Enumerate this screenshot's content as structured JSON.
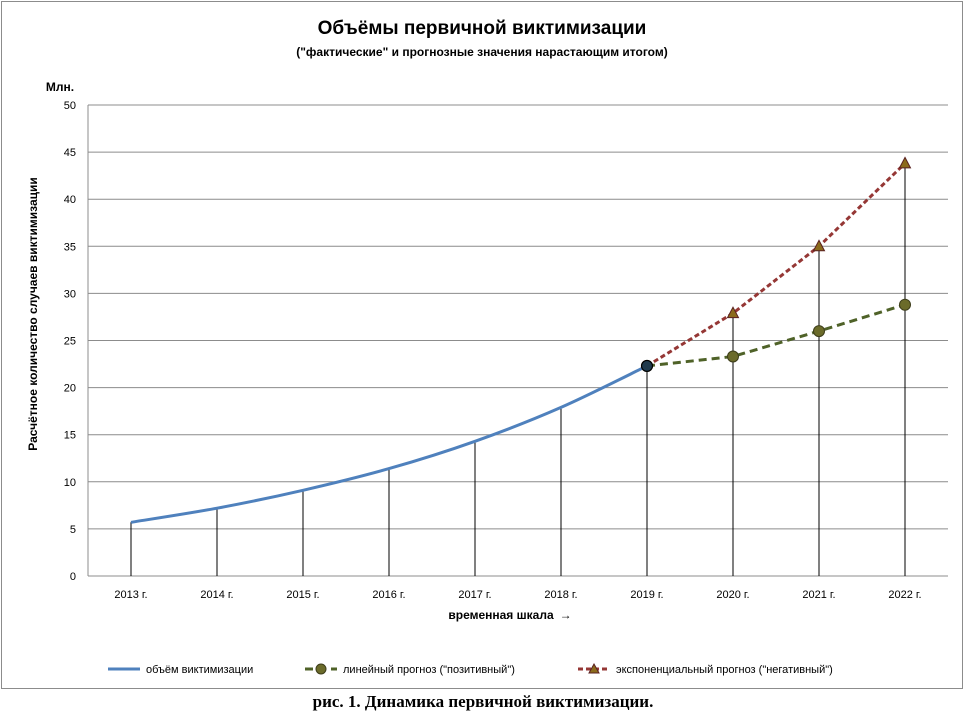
{
  "caption": "рис. 1. Динамика первичной виктимизации.",
  "chart_data": {
    "type": "line",
    "title": "Объёмы первичной виктимизации",
    "subtitle": "(\"фактические\" и прогнозные значения нарастающим итогом)",
    "unit_label": "Млн.",
    "ylabel": "Расчётное количество случаев виктимизации",
    "xlabel": "временная шкала",
    "xlabel_arrow": "→",
    "categories": [
      "2013 г.",
      "2014 г.",
      "2015 г.",
      "2016 г.",
      "2017 г.",
      "2018 г.",
      "2019 г.",
      "2020 г.",
      "2021 г.",
      "2022 г."
    ],
    "ylim": [
      0,
      50
    ],
    "yticks": [
      0,
      5,
      10,
      15,
      20,
      25,
      30,
      35,
      40,
      45,
      50
    ],
    "grid": true,
    "drop_lines": true,
    "legend_position": "bottom",
    "series": [
      {
        "name": "объём виктимизации",
        "color": "#4f81bd",
        "style": "solid",
        "marker": "none",
        "values": [
          5.7,
          7.2,
          9.1,
          11.4,
          14.3,
          17.9,
          22.3,
          null,
          null,
          null
        ]
      },
      {
        "name": "линейный прогноз (\"позитивный\")",
        "color": "#4f6228",
        "style": "dashed",
        "marker": "circle",
        "values": [
          null,
          null,
          null,
          null,
          null,
          null,
          22.3,
          23.3,
          26.0,
          28.8
        ]
      },
      {
        "name": "экспоненциальный прогноз (\"негативный\")",
        "color": "#953735",
        "style": "dashed",
        "marker": "triangle",
        "values": [
          null,
          null,
          null,
          null,
          null,
          null,
          22.3,
          27.9,
          35.0,
          43.8
        ]
      }
    ]
  }
}
